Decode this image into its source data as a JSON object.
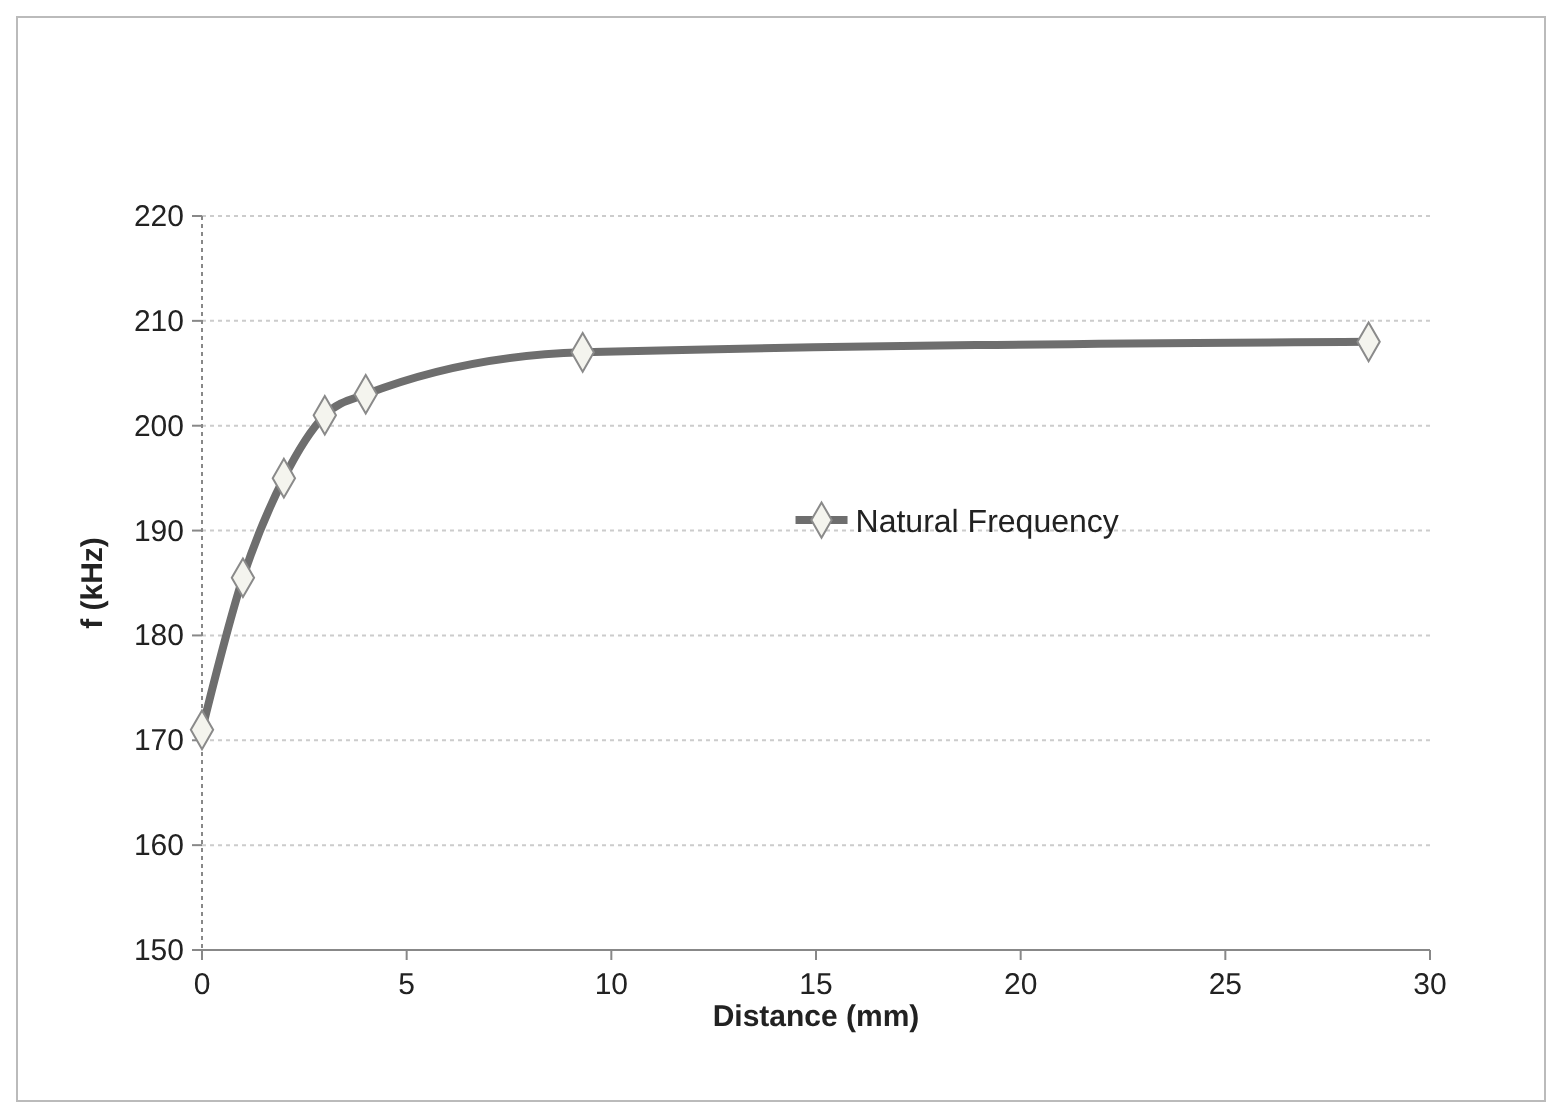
{
  "chart_data": {
    "type": "line",
    "xlabel": "Distance (mm)",
    "ylabel": "f (kHz)",
    "x": [
      0,
      1,
      2,
      3,
      4,
      9.3,
      28.5
    ],
    "series": [
      {
        "name": "Natural Frequency",
        "color": "#6e6e6e",
        "values": [
          171,
          185.5,
          195,
          201,
          203,
          207,
          208
        ]
      }
    ],
    "xlim": [
      0,
      30
    ],
    "xticks": [
      0,
      5,
      10,
      15,
      20,
      25,
      30
    ],
    "ylim": [
      150,
      220
    ],
    "yticks": [
      150,
      160,
      170,
      180,
      190,
      200,
      210,
      220
    ],
    "grid": "y",
    "legend": "right",
    "marker": "diamond",
    "line_style": "solid"
  }
}
